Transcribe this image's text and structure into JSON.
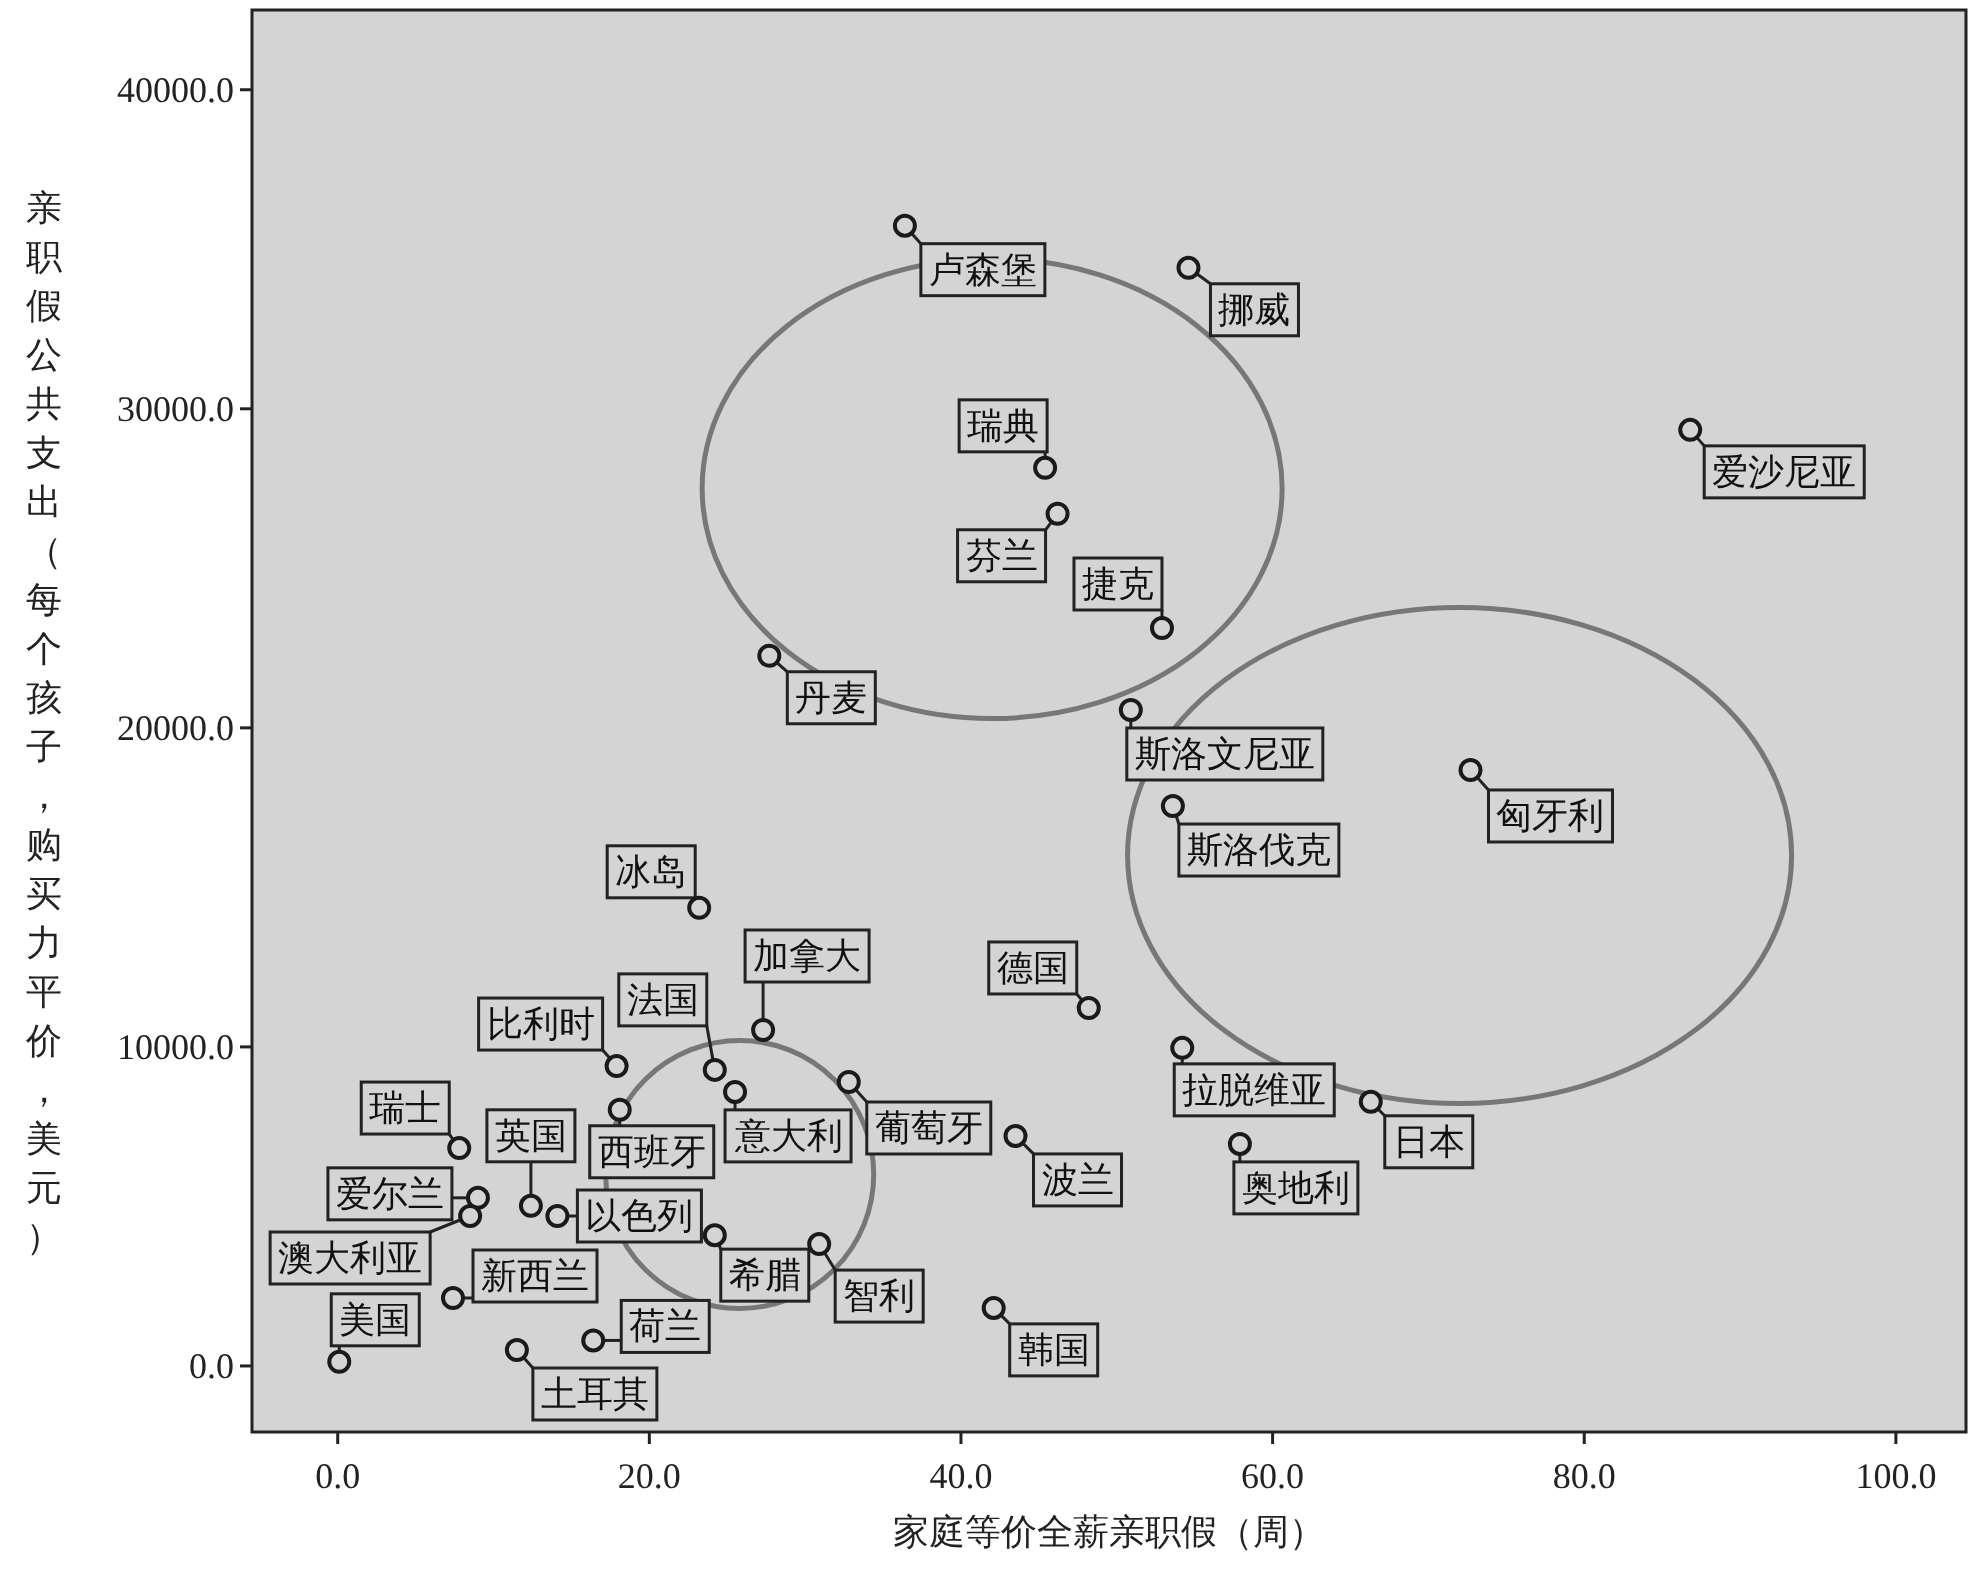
{
  "chart_data": {
    "type": "scatter",
    "xlabel": "家庭等价全薪亲职假（周）",
    "ylabel": "亲职假公共支出（每个孩子，购买力平价，美元）",
    "xlim": [
      -5.5,
      104.5
    ],
    "ylim": [
      -2070,
      42500
    ],
    "xticks": [
      {
        "value": 0,
        "label": "0.0"
      },
      {
        "value": 20,
        "label": "20.0"
      },
      {
        "value": 40,
        "label": "40.0"
      },
      {
        "value": 60,
        "label": "60.0"
      },
      {
        "value": 80,
        "label": "80.0"
      },
      {
        "value": 100,
        "label": "100.0"
      }
    ],
    "yticks": [
      {
        "value": 0,
        "label": "0.0"
      },
      {
        "value": 10000,
        "label": "10000.0"
      },
      {
        "value": 20000,
        "label": "20000.0"
      },
      {
        "value": 30000,
        "label": "30000.0"
      },
      {
        "value": 40000,
        "label": "40000.0"
      }
    ],
    "grid": false,
    "marker": "circle",
    "series": [
      {
        "color": "#1a1a1a",
        "x": [
          36.4,
          54.6,
          45.4,
          46.2,
          52.9,
          27.7,
          86.8,
          50.9,
          53.6,
          72.7,
          23.2,
          27.3,
          24.2,
          17.9,
          25.5,
          32.8,
          18.1,
          7.8,
          9.0,
          8.5,
          7.4,
          0.1,
          12.4,
          14.1,
          16.4,
          11.5,
          24.2,
          30.9,
          48.2,
          43.5,
          42.1,
          54.2,
          66.3,
          57.9
        ],
        "values": [
          35740,
          34420,
          28150,
          26710,
          23130,
          22260,
          29340,
          20560,
          17550,
          18680,
          14360,
          10530,
          9280,
          9400,
          8590,
          8900,
          8030,
          6830,
          5270,
          4700,
          2130,
          130,
          5020,
          4700,
          800,
          500,
          4100,
          3820,
          11220,
          7210,
          1820,
          9970,
          8280,
          6960
        ]
      }
    ],
    "annotations": [
      {
        "text": "卢森堡",
        "x": 36.4,
        "y": 35740
      },
      {
        "text": "挪威",
        "x": 54.6,
        "y": 34420
      },
      {
        "text": "瑞典",
        "x": 45.4,
        "y": 28150
      },
      {
        "text": "芬兰",
        "x": 46.2,
        "y": 26710
      },
      {
        "text": "捷克",
        "x": 52.9,
        "y": 23130
      },
      {
        "text": "丹麦",
        "x": 27.7,
        "y": 22260
      },
      {
        "text": "爱沙尼亚",
        "x": 86.8,
        "y": 29340
      },
      {
        "text": "斯洛文尼亚",
        "x": 50.9,
        "y": 20560
      },
      {
        "text": "斯洛伐克",
        "x": 53.6,
        "y": 17550
      },
      {
        "text": "匈牙利",
        "x": 72.7,
        "y": 18680
      },
      {
        "text": "冰岛",
        "x": 23.2,
        "y": 14360
      },
      {
        "text": "加拿大",
        "x": 27.3,
        "y": 10530
      },
      {
        "text": "法国",
        "x": 24.2,
        "y": 9280
      },
      {
        "text": "比利时",
        "x": 17.9,
        "y": 9400
      },
      {
        "text": "意大利",
        "x": 25.5,
        "y": 8590
      },
      {
        "text": "葡萄牙",
        "x": 32.8,
        "y": 8900
      },
      {
        "text": "西班牙",
        "x": 18.1,
        "y": 8030
      },
      {
        "text": "瑞士",
        "x": 7.8,
        "y": 6830
      },
      {
        "text": "爱尔兰",
        "x": 9.0,
        "y": 5270
      },
      {
        "text": "澳大利亚",
        "x": 8.5,
        "y": 4700
      },
      {
        "text": "新西兰",
        "x": 7.4,
        "y": 2130
      },
      {
        "text": "美国",
        "x": 0.1,
        "y": 130
      },
      {
        "text": "英国",
        "x": 12.4,
        "y": 5020
      },
      {
        "text": "以色列",
        "x": 14.1,
        "y": 4700
      },
      {
        "text": "荷兰",
        "x": 16.4,
        "y": 800
      },
      {
        "text": "土耳其",
        "x": 11.5,
        "y": 500
      },
      {
        "text": "希腊",
        "x": 24.2,
        "y": 4100
      },
      {
        "text": "智利",
        "x": 30.9,
        "y": 3820
      },
      {
        "text": "德国",
        "x": 48.2,
        "y": 11220
      },
      {
        "text": "波兰",
        "x": 43.5,
        "y": 7210
      },
      {
        "text": "韩国",
        "x": 42.1,
        "y": 1820
      },
      {
        "text": "拉脱维亚",
        "x": 54.2,
        "y": 9970
      },
      {
        "text": "日本",
        "x": 66.3,
        "y": 8280
      },
      {
        "text": "奥地利",
        "x": 57.9,
        "y": 6960
      }
    ]
  }
}
